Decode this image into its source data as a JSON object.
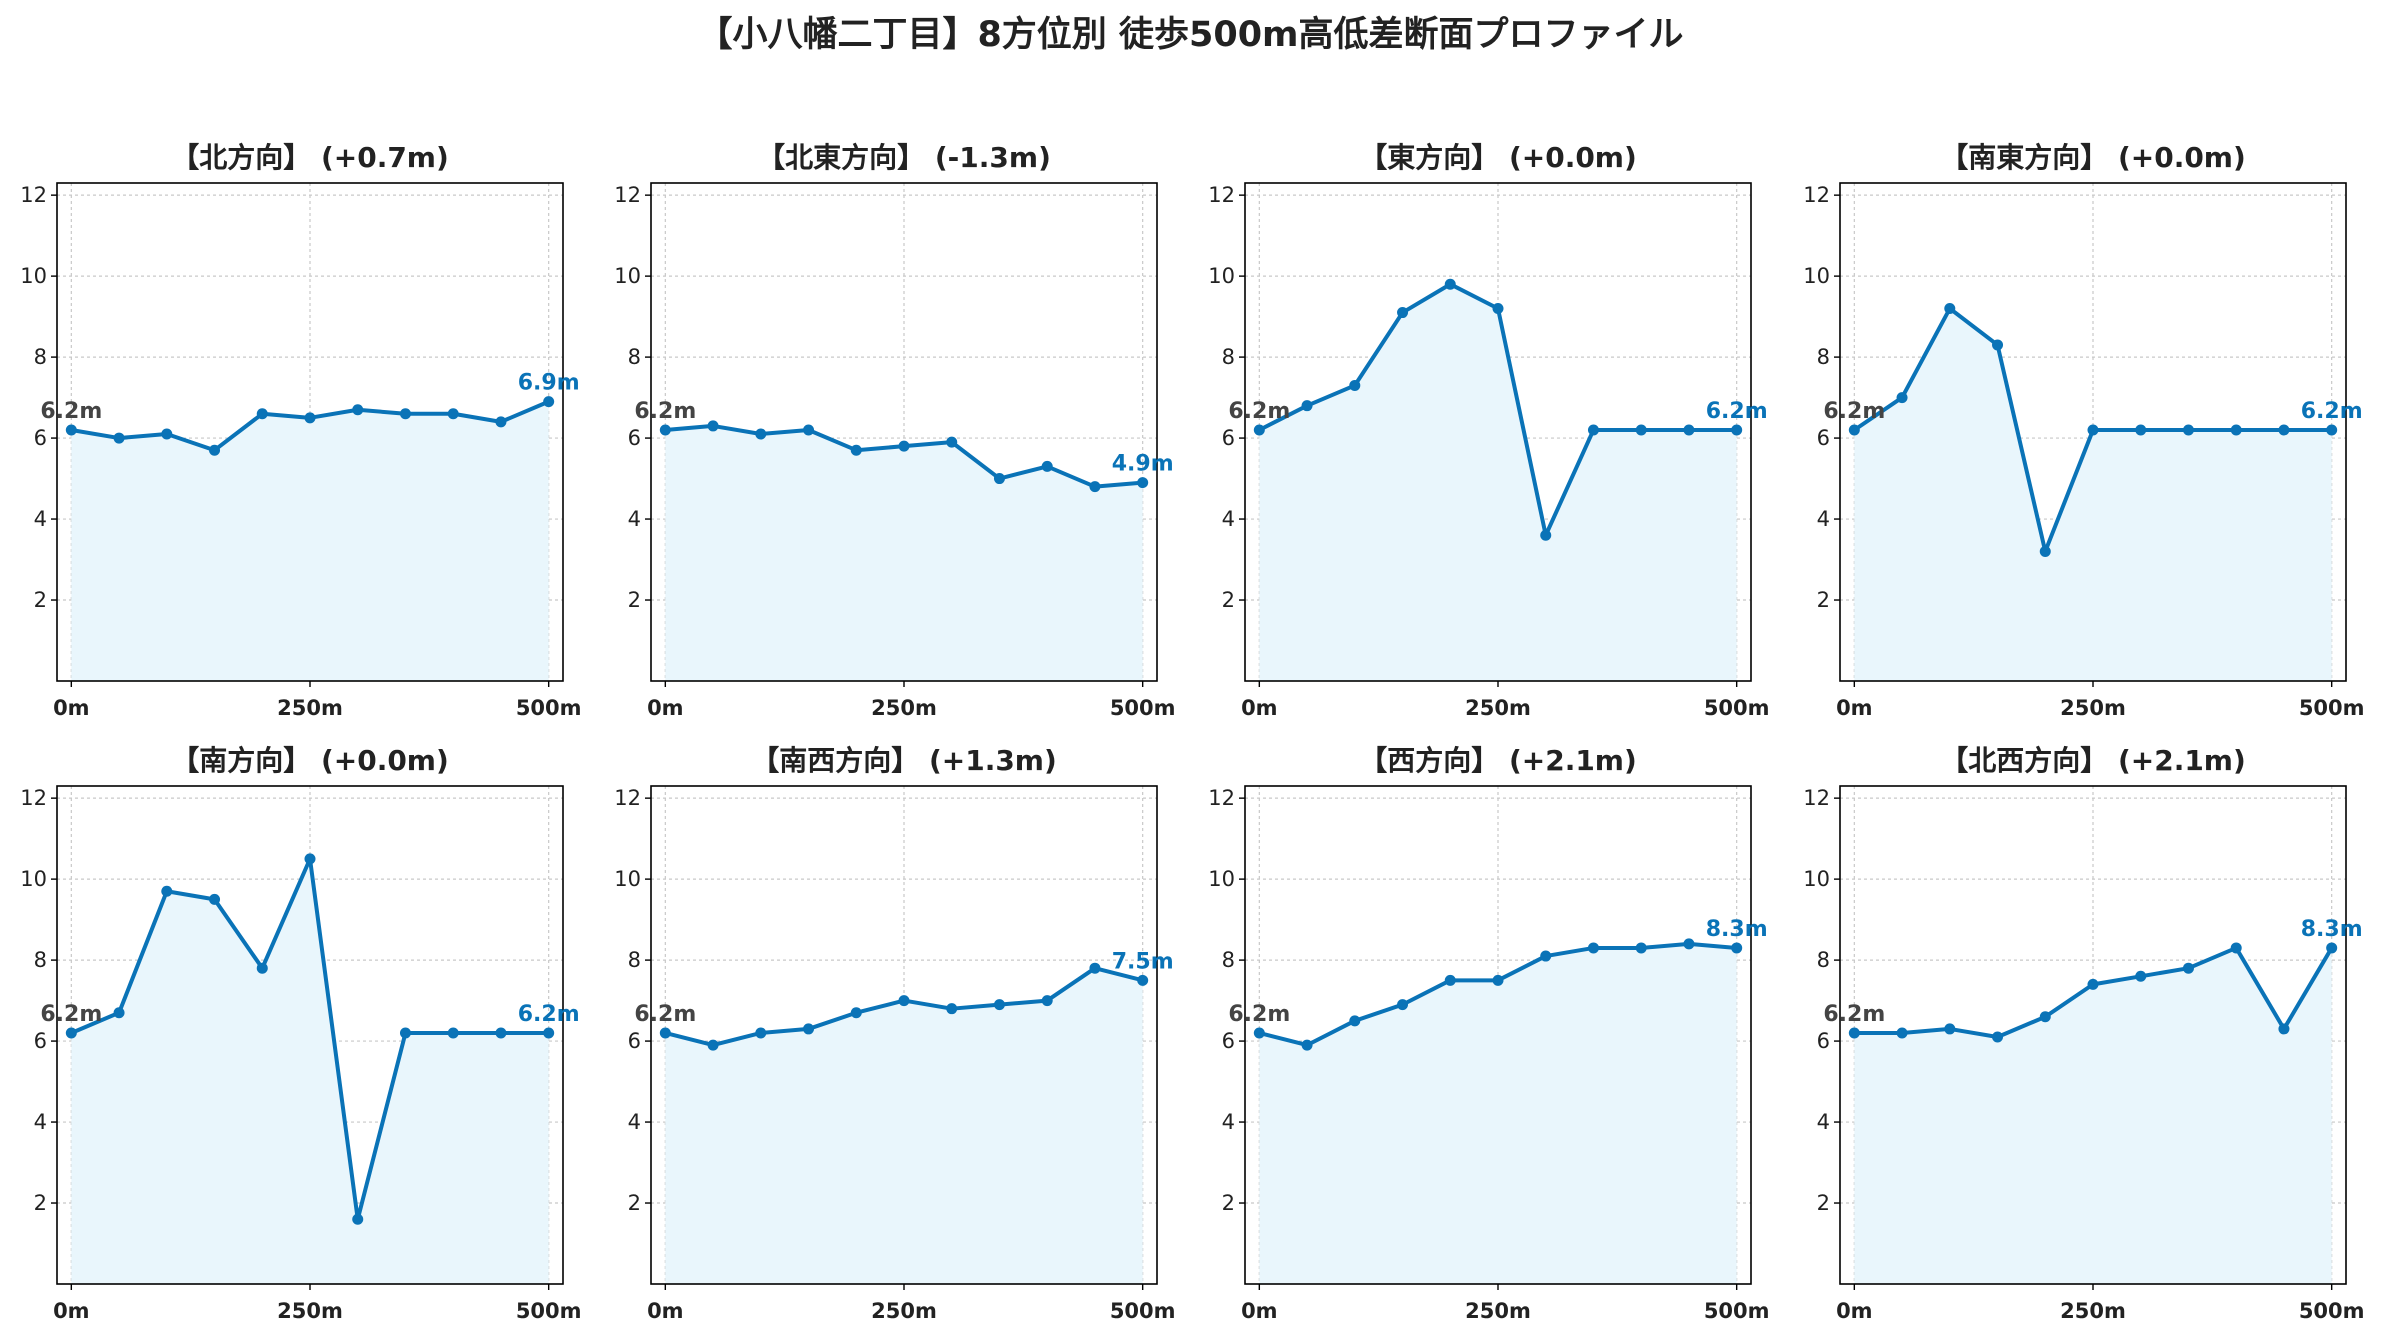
{
  "title": "【小八幡二丁目】8方位別 徒歩500m高低差断面プロファイル",
  "colors": {
    "line": "#0a73b7",
    "fill": "#e9f6fc",
    "grid": "#c8c8c8",
    "start_label": "#444444",
    "end_label": "#0a73b7"
  },
  "chart_data": [
    {
      "type": "area",
      "title": "【北方向】 (+0.7m)",
      "x": [
        0,
        50,
        100,
        150,
        200,
        250,
        300,
        350,
        400,
        450,
        500
      ],
      "values": [
        6.2,
        6.0,
        6.1,
        5.7,
        6.6,
        6.5,
        6.7,
        6.6,
        6.6,
        6.4,
        6.9
      ],
      "start_label": "6.2m",
      "end_label": "6.9m",
      "xticks": [
        0,
        250,
        500
      ],
      "xtick_labels": [
        "0m",
        "250m",
        "500m"
      ],
      "yticks": [
        2,
        4,
        6,
        8,
        10,
        12
      ],
      "ylim": [
        0,
        12.3
      ],
      "xlim": [
        -15,
        515
      ],
      "grid": true
    },
    {
      "type": "area",
      "title": "【北東方向】 (-1.3m)",
      "x": [
        0,
        50,
        100,
        150,
        200,
        250,
        300,
        350,
        400,
        450,
        500
      ],
      "values": [
        6.2,
        6.3,
        6.1,
        6.2,
        5.7,
        5.8,
        5.9,
        5.0,
        5.3,
        4.8,
        4.9
      ],
      "start_label": "6.2m",
      "end_label": "4.9m",
      "xticks": [
        0,
        250,
        500
      ],
      "xtick_labels": [
        "0m",
        "250m",
        "500m"
      ],
      "yticks": [
        2,
        4,
        6,
        8,
        10,
        12
      ],
      "ylim": [
        0,
        12.3
      ],
      "xlim": [
        -15,
        515
      ],
      "grid": true
    },
    {
      "type": "area",
      "title": "【東方向】 (+0.0m)",
      "x": [
        0,
        50,
        100,
        150,
        200,
        250,
        300,
        350,
        400,
        450,
        500
      ],
      "values": [
        6.2,
        6.8,
        7.3,
        9.1,
        9.8,
        9.2,
        3.6,
        6.2,
        6.2,
        6.2,
        6.2
      ],
      "start_label": "6.2m",
      "end_label": "6.2m",
      "xticks": [
        0,
        250,
        500
      ],
      "xtick_labels": [
        "0m",
        "250m",
        "500m"
      ],
      "yticks": [
        2,
        4,
        6,
        8,
        10,
        12
      ],
      "ylim": [
        0,
        12.3
      ],
      "xlim": [
        -15,
        515
      ],
      "grid": true
    },
    {
      "type": "area",
      "title": "【南東方向】 (+0.0m)",
      "x": [
        0,
        50,
        100,
        150,
        200,
        250,
        300,
        350,
        400,
        450,
        500
      ],
      "values": [
        6.2,
        7.0,
        9.2,
        8.3,
        3.2,
        6.2,
        6.2,
        6.2,
        6.2,
        6.2,
        6.2
      ],
      "start_label": "6.2m",
      "end_label": "6.2m",
      "xticks": [
        0,
        250,
        500
      ],
      "xtick_labels": [
        "0m",
        "250m",
        "500m"
      ],
      "yticks": [
        2,
        4,
        6,
        8,
        10,
        12
      ],
      "ylim": [
        0,
        12.3
      ],
      "xlim": [
        -15,
        515
      ],
      "grid": true
    },
    {
      "type": "area",
      "title": "【南方向】 (+0.0m)",
      "x": [
        0,
        50,
        100,
        150,
        200,
        250,
        300,
        350,
        400,
        450,
        500
      ],
      "values": [
        6.2,
        6.7,
        9.7,
        9.5,
        7.8,
        10.5,
        1.6,
        6.2,
        6.2,
        6.2,
        6.2
      ],
      "start_label": "6.2m",
      "end_label": "6.2m",
      "xticks": [
        0,
        250,
        500
      ],
      "xtick_labels": [
        "0m",
        "250m",
        "500m"
      ],
      "yticks": [
        2,
        4,
        6,
        8,
        10,
        12
      ],
      "ylim": [
        0,
        12.3
      ],
      "xlim": [
        -15,
        515
      ],
      "grid": true
    },
    {
      "type": "area",
      "title": "【南西方向】 (+1.3m)",
      "x": [
        0,
        50,
        100,
        150,
        200,
        250,
        300,
        350,
        400,
        450,
        500
      ],
      "values": [
        6.2,
        5.9,
        6.2,
        6.3,
        6.7,
        7.0,
        6.8,
        6.9,
        7.0,
        7.8,
        7.5
      ],
      "start_label": "6.2m",
      "end_label": "7.5m",
      "xticks": [
        0,
        250,
        500
      ],
      "xtick_labels": [
        "0m",
        "250m",
        "500m"
      ],
      "yticks": [
        2,
        4,
        6,
        8,
        10,
        12
      ],
      "ylim": [
        0,
        12.3
      ],
      "xlim": [
        -15,
        515
      ],
      "grid": true
    },
    {
      "type": "area",
      "title": "【西方向】 (+2.1m)",
      "x": [
        0,
        50,
        100,
        150,
        200,
        250,
        300,
        350,
        400,
        450,
        500
      ],
      "values": [
        6.2,
        5.9,
        6.5,
        6.9,
        7.5,
        7.5,
        8.1,
        8.3,
        8.3,
        8.4,
        8.3
      ],
      "start_label": "6.2m",
      "end_label": "8.3m",
      "xticks": [
        0,
        250,
        500
      ],
      "xtick_labels": [
        "0m",
        "250m",
        "500m"
      ],
      "yticks": [
        2,
        4,
        6,
        8,
        10,
        12
      ],
      "ylim": [
        0,
        12.3
      ],
      "xlim": [
        -15,
        515
      ],
      "grid": true
    },
    {
      "type": "area",
      "title": "【北西方向】 (+2.1m)",
      "x": [
        0,
        50,
        100,
        150,
        200,
        250,
        300,
        350,
        400,
        450,
        500
      ],
      "values": [
        6.2,
        6.2,
        6.3,
        6.1,
        6.6,
        7.4,
        7.6,
        7.8,
        8.3,
        6.3,
        8.3
      ],
      "start_label": "6.2m",
      "end_label": "8.3m",
      "xticks": [
        0,
        250,
        500
      ],
      "xtick_labels": [
        "0m",
        "250m",
        "500m"
      ],
      "yticks": [
        2,
        4,
        6,
        8,
        10,
        12
      ],
      "ylim": [
        0,
        12.3
      ],
      "xlim": [
        -15,
        515
      ],
      "grid": true
    }
  ]
}
